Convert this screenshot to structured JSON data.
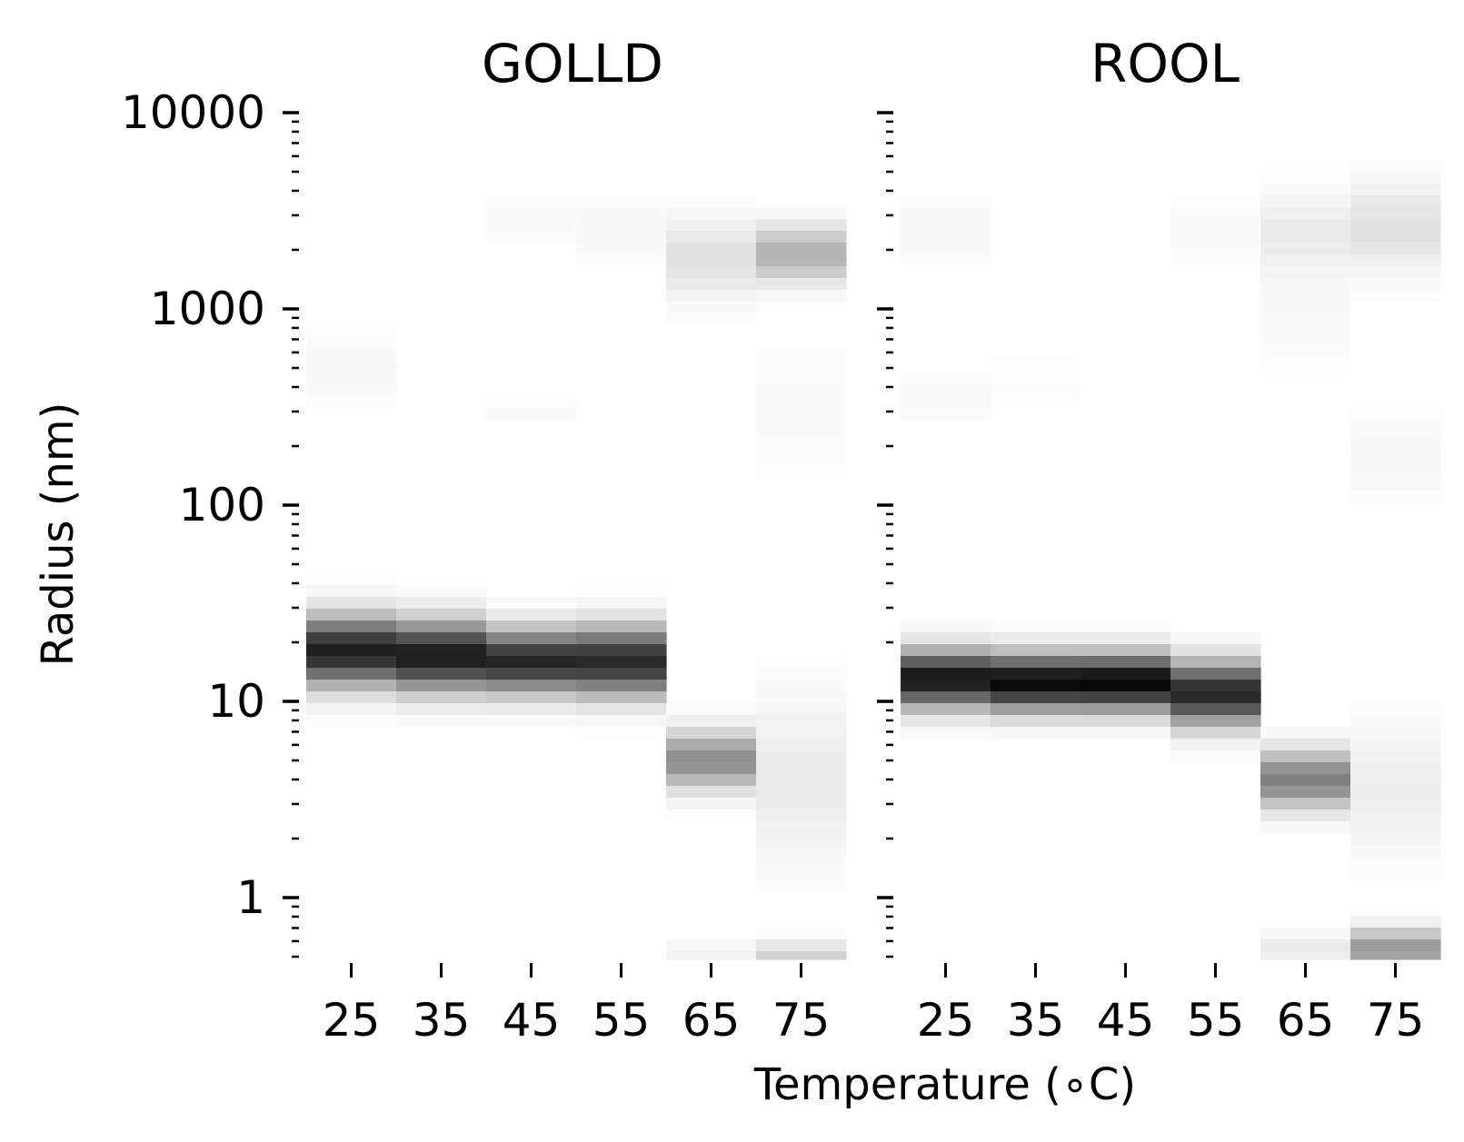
{
  "chart_data": {
    "type": "heatmap",
    "shared_xlabel": "Temperature (∘C)",
    "shared_ylabel": "Radius (nm)",
    "y_scale": "log",
    "ylim": [
      0.5,
      10000
    ],
    "y_tick_labels": [
      "10000",
      "1000",
      "100",
      "10",
      "1"
    ],
    "y_tick_values": [
      10000,
      1000,
      100,
      10,
      1
    ],
    "colormap": "Greys",
    "intensity_scale": "0 = white, 1 = black",
    "categories": [
      "25",
      "35",
      "45",
      "55",
      "65",
      "75"
    ],
    "panels": [
      {
        "title": "GOLLD",
        "columns": [
          {
            "temperature": "25",
            "bands": [
              {
                "radius": 18,
                "intensity": 0.88,
                "spread": 0.12
              },
              {
                "radius": 500,
                "intensity": 0.03,
                "spread": 0.12
              }
            ]
          },
          {
            "temperature": "35",
            "bands": [
              {
                "radius": 17,
                "intensity": 0.9,
                "spread": 0.12
              }
            ]
          },
          {
            "temperature": "45",
            "bands": [
              {
                "radius": 16,
                "intensity": 0.85,
                "spread": 0.11
              },
              {
                "radius": 300,
                "intensity": 0.02,
                "spread": 0.04
              },
              {
                "radius": 2800,
                "intensity": 0.02,
                "spread": 0.1
              }
            ]
          },
          {
            "temperature": "55",
            "bands": [
              {
                "radius": 16,
                "intensity": 0.84,
                "spread": 0.12
              },
              {
                "radius": 2500,
                "intensity": 0.03,
                "spread": 0.12
              }
            ]
          },
          {
            "temperature": "65",
            "bands": [
              {
                "radius": 5,
                "intensity": 0.45,
                "spread": 0.1
              },
              {
                "radius": 1800,
                "intensity": 0.12,
                "spread": 0.14
              },
              {
                "radius": 0.5,
                "intensity": 0.05,
                "spread": 0.06
              }
            ]
          },
          {
            "temperature": "75",
            "bands": [
              {
                "radius": 1900,
                "intensity": 0.3,
                "spread": 0.1
              },
              {
                "radius": 4,
                "intensity": 0.08,
                "spread": 0.28
              },
              {
                "radius": 0.5,
                "intensity": 0.18,
                "spread": 0.05
              },
              {
                "radius": 300,
                "intensity": 0.02,
                "spread": 0.25
              }
            ]
          }
        ]
      },
      {
        "title": "ROOL",
        "columns": [
          {
            "temperature": "25",
            "bands": [
              {
                "radius": 13,
                "intensity": 0.92,
                "spread": 0.1
              },
              {
                "radius": 2500,
                "intensity": 0.03,
                "spread": 0.12
              },
              {
                "radius": 350,
                "intensity": 0.02,
                "spread": 0.1
              }
            ]
          },
          {
            "temperature": "35",
            "bands": [
              {
                "radius": 12.5,
                "intensity": 0.97,
                "spread": 0.1
              },
              {
                "radius": 400,
                "intensity": 0.01,
                "spread": 0.2
              }
            ]
          },
          {
            "temperature": "45",
            "bands": [
              {
                "radius": 12.5,
                "intensity": 0.98,
                "spread": 0.1
              }
            ]
          },
          {
            "temperature": "55",
            "bands": [
              {
                "radius": 11,
                "intensity": 0.85,
                "spread": 0.11
              },
              {
                "radius": 2500,
                "intensity": 0.02,
                "spread": 0.12
              }
            ]
          },
          {
            "temperature": "65",
            "bands": [
              {
                "radius": 4,
                "intensity": 0.5,
                "spread": 0.1
              },
              {
                "radius": 2400,
                "intensity": 0.08,
                "spread": 0.14
              },
              {
                "radius": 0.55,
                "intensity": 0.08,
                "spread": 0.06
              },
              {
                "radius": 900,
                "intensity": 0.02,
                "spread": 0.2
              }
            ]
          },
          {
            "temperature": "75",
            "bands": [
              {
                "radius": 2600,
                "intensity": 0.12,
                "spread": 0.15
              },
              {
                "radius": 0.55,
                "intensity": 0.4,
                "spread": 0.07
              },
              {
                "radius": 3.5,
                "intensity": 0.07,
                "spread": 0.22
              },
              {
                "radius": 180,
                "intensity": 0.03,
                "spread": 0.15
              }
            ]
          }
        ]
      }
    ]
  }
}
